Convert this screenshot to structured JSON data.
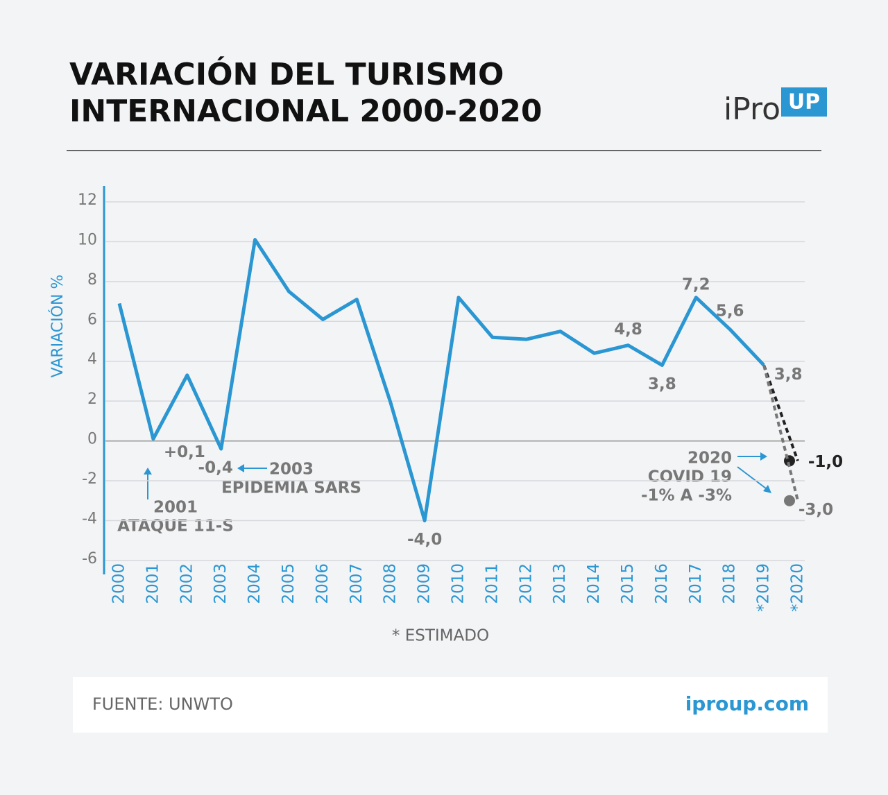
{
  "chart_data": {
    "type": "line",
    "title": [
      "VARIACIÓN DEL TURISMO",
      "INTERNACIONAL 2000-2020"
    ],
    "logo": [
      "iPro",
      "UP"
    ],
    "y_label": "VARIACIÓN %",
    "categories": [
      "2000",
      "2001",
      "2002",
      "2003",
      "2004",
      "2005",
      "2006",
      "2007",
      "2008",
      "2009",
      "2010",
      "2011",
      "2012",
      "2013",
      "2014",
      "2015",
      "2016",
      "2017",
      "2018",
      "*2019",
      "*2020"
    ],
    "series": [
      {
        "color": "#2a96d2",
        "dashed": false,
        "values": [
          6.9,
          0.1,
          3.3,
          -0.4,
          10.1,
          7.5,
          6.1,
          7.1,
          1.9,
          -4.0,
          7.2,
          5.2,
          5.1,
          5.5,
          4.4,
          4.8,
          3.8,
          7.2,
          5.6,
          3.8,
          null
        ],
        "value_labels": [
          null,
          "+0,1",
          null,
          "-0,4",
          null,
          null,
          null,
          null,
          null,
          "-4,0",
          null,
          null,
          null,
          null,
          null,
          "4,8",
          "3,8",
          "7,2",
          "5,6",
          "3,8",
          null
        ]
      },
      {
        "color": "#222222",
        "dashed": true,
        "values": [
          null,
          null,
          null,
          null,
          null,
          null,
          null,
          null,
          null,
          null,
          null,
          null,
          null,
          null,
          null,
          null,
          null,
          null,
          null,
          3.8,
          -1.0
        ],
        "value_labels": [
          null,
          null,
          null,
          null,
          null,
          null,
          null,
          null,
          null,
          null,
          null,
          null,
          null,
          null,
          null,
          null,
          null,
          null,
          null,
          null,
          "-1,0"
        ]
      },
      {
        "color": "#777777",
        "dashed": true,
        "values": [
          null,
          null,
          null,
          null,
          null,
          null,
          null,
          null,
          null,
          null,
          null,
          null,
          null,
          null,
          null,
          null,
          null,
          null,
          null,
          3.8,
          -3.0
        ],
        "value_labels": [
          null,
          null,
          null,
          null,
          null,
          null,
          null,
          null,
          null,
          null,
          null,
          null,
          null,
          null,
          null,
          null,
          null,
          null,
          null,
          null,
          "-3,0"
        ]
      }
    ],
    "ylim": [
      -6.7,
      12.8
    ],
    "yticks": [
      -6,
      -4,
      -2,
      0,
      2,
      4,
      6,
      8,
      10,
      12
    ],
    "grid": true,
    "annotations": [
      [
        "2001",
        "ATAQUE 11-S"
      ],
      [
        "2003",
        "EPIDEMIA SARS"
      ],
      [
        "2020",
        "COVID 19",
        "-1% A -3%"
      ]
    ],
    "note": "* ESTIMADO",
    "source": "FUENTE: UNWTO",
    "site": "iproup.com"
  }
}
